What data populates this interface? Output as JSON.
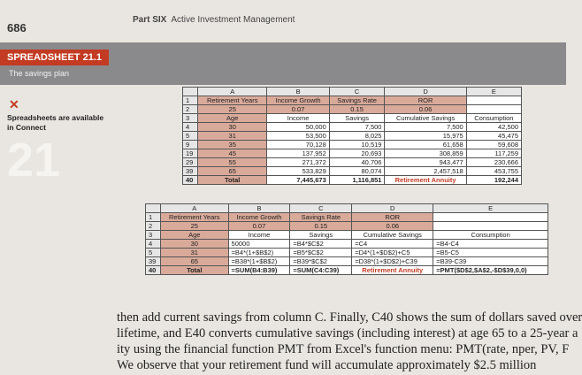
{
  "header": {
    "page_number": "686",
    "part": "Part SIX",
    "part_title": "Active Investment Management"
  },
  "banner": {
    "label": "SPREADSHEET 21.1",
    "subtitle": "The savings plan"
  },
  "sidebar": {
    "note": "Spreadsheets are available in Connect"
  },
  "chapter_mark": "21",
  "spreadsheets": [
    {
      "columns": [
        "A",
        "B",
        "C",
        "D",
        "E"
      ],
      "rows": [
        {
          "number": "1",
          "cells": [
            "Retirement Years",
            "Income Growth",
            "Savings Rate",
            "ROR",
            null
          ]
        },
        {
          "number": "2",
          "cells": [
            "25",
            "0.07",
            "0.15",
            "0.06",
            null
          ]
        },
        {
          "number": "3",
          "cells": [
            "Age",
            "Income",
            "Savings",
            "Cumulative Savings",
            "Consumption"
          ]
        },
        {
          "number": "4",
          "cells": [
            "30",
            "50,000",
            "7,500",
            "7,500",
            "42,500"
          ]
        },
        {
          "number": "5",
          "cells": [
            "31",
            "53,500",
            "8,025",
            "15,975",
            "45,475"
          ]
        },
        {
          "number": "9",
          "cells": [
            "35",
            "70,128",
            "10,519",
            "61,658",
            "59,608"
          ]
        },
        {
          "number": "19",
          "cells": [
            "45",
            "137,952",
            "20,693",
            "308,859",
            "117,259"
          ]
        },
        {
          "number": "29",
          "cells": [
            "55",
            "271,372",
            "40,706",
            "943,477",
            "230,666"
          ]
        },
        {
          "number": "39",
          "cells": [
            "65",
            "533,829",
            "80,074",
            "2,457,518",
            "453,755"
          ]
        },
        {
          "number": "40",
          "cells": [
            "Total",
            "7,445,673",
            "1,116,851",
            "Retirement Annuity",
            "192,244"
          ]
        }
      ]
    },
    {
      "columns": [
        "A",
        "B",
        "C",
        "D",
        "E"
      ],
      "rows": [
        {
          "number": "1",
          "cells": [
            "Retirement Years",
            "Income Growth",
            "Savings Rate",
            "ROR",
            null
          ]
        },
        {
          "number": "2",
          "cells": [
            "25",
            "0.07",
            "0.15",
            "0.06",
            null
          ]
        },
        {
          "number": "3",
          "cells": [
            "Age",
            "Income",
            "Savings",
            "Cumulative Savings",
            "Consumption"
          ]
        },
        {
          "number": "4",
          "cells": [
            "30",
            "50000",
            "=B4*$C$2",
            "=C4",
            "=B4-C4"
          ]
        },
        {
          "number": "5",
          "cells": [
            "31",
            "=B4*(1+$B$2)",
            "=B5*$C$2",
            "=D4*(1+$D$2)+C5",
            "=B5-C5"
          ]
        },
        {
          "number": "39",
          "cells": [
            "65",
            "=B38*(1+$B$2)",
            "=B39*$C$2",
            "=D38*(1+$D$2)+C39",
            "=B39-C39"
          ]
        },
        {
          "number": "40",
          "cells": [
            "Total",
            "=SUM(B4:B39)",
            "=SUM(C4:C39)",
            "Retirement Annuity",
            "=PMT($D$2,$A$2,-$D$39,0,0)"
          ]
        }
      ]
    }
  ],
  "body": {
    "lines": [
      "then add current savings from column C. Finally, C40 shows the sum of dollars saved over",
      "lifetime, and E40 converts cumulative savings (including interest) at age 65 to a 25-year a",
      "ity using the financial function PMT from Excel's function menu: PMT(rate, nper, PV, F",
      "We observe that your retirement fund will accumulate approximately $2.5 million"
    ]
  }
}
